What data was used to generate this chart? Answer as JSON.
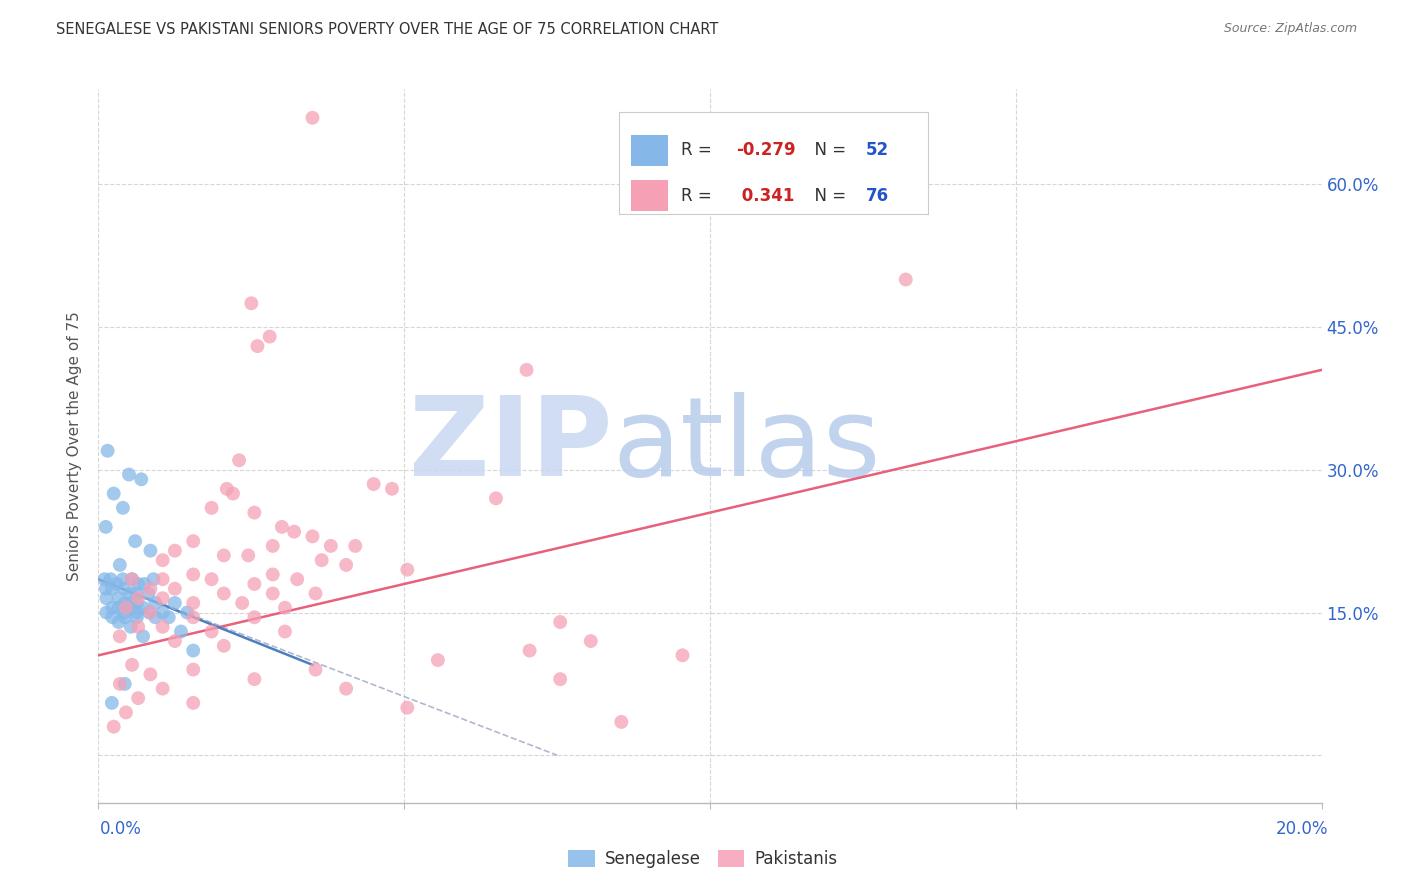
{
  "title": "SENEGALESE VS PAKISTANI SENIORS POVERTY OVER THE AGE OF 75 CORRELATION CHART",
  "source": "Source: ZipAtlas.com",
  "ylabel": "Seniors Poverty Over the Age of 75",
  "xlim": [
    0.0,
    20.0
  ],
  "ylim": [
    -5.0,
    70.0
  ],
  "ytick_positions": [
    0,
    15,
    30,
    45,
    60
  ],
  "ytick_labels_right": [
    "",
    "15.0%",
    "30.0%",
    "45.0%",
    "60.0%"
  ],
  "xtick_positions": [
    0,
    5,
    10,
    15,
    20
  ],
  "senegalese_color": "#85b8e8",
  "pakistani_color": "#f5a0b5",
  "senegalese_line_color": "#4d7fbf",
  "pakistani_line_color": "#e8607a",
  "dashed_line_color": "#b0b8d0",
  "r_senegalese": -0.279,
  "n_senegalese": 52,
  "r_pakistani": 0.341,
  "n_pakistani": 76,
  "legend_r_color": "#cc2222",
  "legend_n_color": "#2255cc",
  "title_color": "#333333",
  "source_color": "#777777",
  "grid_color": "#cccccc",
  "axis_label_color": "#3366cc",
  "ylabel_color": "#555555",
  "bg_color": "#ffffff",
  "watermark_zip_color": "#c8d8f0",
  "watermark_atlas_color": "#b8ccec",
  "scatter_size": 100,
  "scatter_alpha": 0.75,
  "senegalese_points": [
    [
      0.15,
      32.0
    ],
    [
      0.5,
      29.5
    ],
    [
      0.7,
      29.0
    ],
    [
      0.25,
      27.5
    ],
    [
      0.4,
      26.0
    ],
    [
      0.12,
      24.0
    ],
    [
      0.6,
      22.5
    ],
    [
      0.85,
      21.5
    ],
    [
      0.35,
      20.0
    ],
    [
      0.9,
      18.5
    ],
    [
      0.1,
      18.5
    ],
    [
      0.2,
      18.5
    ],
    [
      0.4,
      18.5
    ],
    [
      0.55,
      18.5
    ],
    [
      0.65,
      18.0
    ],
    [
      0.3,
      18.0
    ],
    [
      0.75,
      18.0
    ],
    [
      0.12,
      17.5
    ],
    [
      0.22,
      17.5
    ],
    [
      0.42,
      17.5
    ],
    [
      0.52,
      17.0
    ],
    [
      0.62,
      17.0
    ],
    [
      0.82,
      17.0
    ],
    [
      0.13,
      16.5
    ],
    [
      0.33,
      16.5
    ],
    [
      0.43,
      16.0
    ],
    [
      0.53,
      16.0
    ],
    [
      0.63,
      16.0
    ],
    [
      0.93,
      16.0
    ],
    [
      1.25,
      16.0
    ],
    [
      0.23,
      15.5
    ],
    [
      0.33,
      15.5
    ],
    [
      0.53,
      15.5
    ],
    [
      0.73,
      15.5
    ],
    [
      0.13,
      15.0
    ],
    [
      0.43,
      15.0
    ],
    [
      0.63,
      15.0
    ],
    [
      0.83,
      15.0
    ],
    [
      1.05,
      15.0
    ],
    [
      1.45,
      15.0
    ],
    [
      0.23,
      14.5
    ],
    [
      0.43,
      14.5
    ],
    [
      0.63,
      14.5
    ],
    [
      0.93,
      14.5
    ],
    [
      1.15,
      14.5
    ],
    [
      0.33,
      14.0
    ],
    [
      0.53,
      13.5
    ],
    [
      1.35,
      13.0
    ],
    [
      0.73,
      12.5
    ],
    [
      1.55,
      11.0
    ],
    [
      0.43,
      7.5
    ],
    [
      0.22,
      5.5
    ]
  ],
  "pakistani_points": [
    [
      3.5,
      67.0
    ],
    [
      13.2,
      50.0
    ],
    [
      2.5,
      47.5
    ],
    [
      2.8,
      44.0
    ],
    [
      2.6,
      43.0
    ],
    [
      7.0,
      40.5
    ],
    [
      2.3,
      31.0
    ],
    [
      4.5,
      28.5
    ],
    [
      4.8,
      28.0
    ],
    [
      2.1,
      28.0
    ],
    [
      2.2,
      27.5
    ],
    [
      6.5,
      27.0
    ],
    [
      1.85,
      26.0
    ],
    [
      2.55,
      25.5
    ],
    [
      3.0,
      24.0
    ],
    [
      3.2,
      23.5
    ],
    [
      3.5,
      23.0
    ],
    [
      1.55,
      22.5
    ],
    [
      2.85,
      22.0
    ],
    [
      3.8,
      22.0
    ],
    [
      4.2,
      22.0
    ],
    [
      1.25,
      21.5
    ],
    [
      2.05,
      21.0
    ],
    [
      2.45,
      21.0
    ],
    [
      3.65,
      20.5
    ],
    [
      1.05,
      20.5
    ],
    [
      4.05,
      20.0
    ],
    [
      5.05,
      19.5
    ],
    [
      1.55,
      19.0
    ],
    [
      2.85,
      19.0
    ],
    [
      3.25,
      18.5
    ],
    [
      0.55,
      18.5
    ],
    [
      1.05,
      18.5
    ],
    [
      1.85,
      18.5
    ],
    [
      2.55,
      18.0
    ],
    [
      0.85,
      17.5
    ],
    [
      1.25,
      17.5
    ],
    [
      2.05,
      17.0
    ],
    [
      2.85,
      17.0
    ],
    [
      3.55,
      17.0
    ],
    [
      0.65,
      16.5
    ],
    [
      1.05,
      16.5
    ],
    [
      1.55,
      16.0
    ],
    [
      2.35,
      16.0
    ],
    [
      3.05,
      15.5
    ],
    [
      0.45,
      15.5
    ],
    [
      0.85,
      15.0
    ],
    [
      1.55,
      14.5
    ],
    [
      2.55,
      14.5
    ],
    [
      7.55,
      14.0
    ],
    [
      0.65,
      13.5
    ],
    [
      1.05,
      13.5
    ],
    [
      1.85,
      13.0
    ],
    [
      3.05,
      13.0
    ],
    [
      8.05,
      12.0
    ],
    [
      0.35,
      12.5
    ],
    [
      1.25,
      12.0
    ],
    [
      2.05,
      11.5
    ],
    [
      7.05,
      11.0
    ],
    [
      9.55,
      10.5
    ],
    [
      5.55,
      10.0
    ],
    [
      0.55,
      9.5
    ],
    [
      1.55,
      9.0
    ],
    [
      3.55,
      9.0
    ],
    [
      0.85,
      8.5
    ],
    [
      2.55,
      8.0
    ],
    [
      7.55,
      8.0
    ],
    [
      0.35,
      7.5
    ],
    [
      1.05,
      7.0
    ],
    [
      4.05,
      7.0
    ],
    [
      0.65,
      6.0
    ],
    [
      1.55,
      5.5
    ],
    [
      5.05,
      5.0
    ],
    [
      0.45,
      4.5
    ],
    [
      8.55,
      3.5
    ],
    [
      0.25,
      3.0
    ]
  ],
  "sen_line_x": [
    0.0,
    3.5
  ],
  "sen_line_y": [
    18.5,
    9.5
  ],
  "pak_line_x": [
    0.0,
    20.0
  ],
  "pak_line_y": [
    10.5,
    40.5
  ],
  "dash_line_x": [
    0.0,
    7.5
  ],
  "dash_line_y": [
    18.5,
    0.0
  ]
}
